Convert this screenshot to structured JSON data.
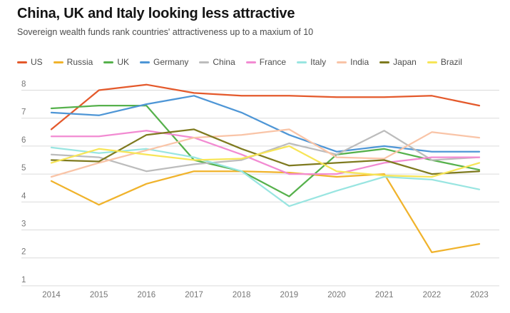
{
  "header": {
    "title": "China, UK and Italy looking less attractive",
    "subtitle": "Sovereign wealth funds rank countries' attractiveness up to a maxium of 10"
  },
  "chart_data": {
    "type": "line",
    "x": [
      2014,
      2015,
      2016,
      2017,
      2018,
      2019,
      2020,
      2021,
      2022,
      2023
    ],
    "series": [
      {
        "name": "US",
        "color": "#E4592B",
        "values": [
          6.6,
          8.0,
          8.2,
          7.9,
          7.8,
          7.8,
          7.75,
          7.75,
          7.8,
          7.45
        ]
      },
      {
        "name": "Russia",
        "color": "#F0B32C",
        "values": [
          4.75,
          3.9,
          4.65,
          5.1,
          5.1,
          5.05,
          4.9,
          5.0,
          2.2,
          2.5
        ]
      },
      {
        "name": "UK",
        "color": "#56B14C",
        "values": [
          7.35,
          7.45,
          7.45,
          5.5,
          5.1,
          4.2,
          5.7,
          5.9,
          5.5,
          5.15
        ]
      },
      {
        "name": "Germany",
        "color": "#4E96D6",
        "values": [
          7.2,
          7.1,
          7.5,
          7.8,
          7.2,
          6.4,
          5.8,
          6.0,
          5.8,
          5.8
        ]
      },
      {
        "name": "China",
        "color": "#BCBCBC",
        "values": [
          5.7,
          5.6,
          5.1,
          5.35,
          5.5,
          6.1,
          5.7,
          6.55,
          5.5,
          5.6
        ]
      },
      {
        "name": "France",
        "color": "#F28BD2",
        "values": [
          6.35,
          6.35,
          6.55,
          6.3,
          5.7,
          5.0,
          5.0,
          5.4,
          5.6,
          5.6
        ]
      },
      {
        "name": "Italy",
        "color": "#99E5E1",
        "values": [
          5.95,
          5.75,
          5.9,
          5.6,
          5.1,
          3.85,
          4.4,
          4.9,
          4.8,
          4.45
        ]
      },
      {
        "name": "India",
        "color": "#F9C4A7",
        "values": [
          4.9,
          5.4,
          5.85,
          6.3,
          6.4,
          6.6,
          5.6,
          5.55,
          6.5,
          6.3
        ]
      },
      {
        "name": "Japan",
        "color": "#7E7A1F",
        "values": [
          5.5,
          5.45,
          6.4,
          6.6,
          5.9,
          5.3,
          5.4,
          5.5,
          5.0,
          5.1
        ]
      },
      {
        "name": "Brazil",
        "color": "#F7E557",
        "values": [
          5.4,
          5.9,
          5.7,
          5.5,
          5.55,
          6.0,
          5.1,
          4.95,
          4.9,
          5.4
        ]
      }
    ],
    "title": "China, UK and Italy looking less attractive",
    "xlabel": "",
    "ylabel": "",
    "ylim": [
      1,
      8
    ],
    "y_ticks": [
      1,
      2,
      3,
      4,
      5,
      6,
      7,
      8
    ],
    "x_tick_labels": [
      "2014",
      "2015",
      "2016",
      "2017",
      "2018",
      "2019",
      "2020",
      "2021",
      "2022",
      "2023"
    ],
    "grid": true,
    "legend_position": "top",
    "gridline_color": "#DBDBDB",
    "tick_label_color": "#767676"
  }
}
